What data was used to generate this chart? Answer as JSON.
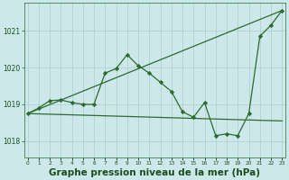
{
  "background_color": "#cce8ea",
  "grid_color": "#aacccc",
  "line_color": "#2d6a2d",
  "marker_color": "#2d6a2d",
  "xlabel": "Graphe pression niveau de la mer (hPa)",
  "xlabel_fontsize": 7.5,
  "xlabel_color": "#1a4d1a",
  "ylabel_ticks": [
    1018,
    1019,
    1020,
    1021
  ],
  "xtick_labels": [
    "0",
    "1",
    "2",
    "3",
    "4",
    "5",
    "6",
    "7",
    "8",
    "9",
    "10",
    "11",
    "12",
    "13",
    "14",
    "15",
    "16",
    "17",
    "18",
    "19",
    "20",
    "21",
    "22",
    "23"
  ],
  "ylim": [
    1017.55,
    1021.75
  ],
  "xlim": [
    -0.3,
    23.3
  ],
  "series1": [
    [
      0,
      1018.75
    ],
    [
      1,
      1018.9
    ],
    [
      2,
      1019.1
    ],
    [
      3,
      1019.12
    ],
    [
      4,
      1019.05
    ],
    [
      5,
      1019.0
    ],
    [
      6,
      1019.0
    ],
    [
      7,
      1019.85
    ],
    [
      8,
      1019.97
    ],
    [
      9,
      1020.35
    ],
    [
      10,
      1020.05
    ],
    [
      11,
      1019.85
    ],
    [
      12,
      1019.6
    ],
    [
      13,
      1019.35
    ],
    [
      14,
      1018.8
    ],
    [
      15,
      1018.65
    ],
    [
      16,
      1019.05
    ],
    [
      17,
      1018.15
    ],
    [
      18,
      1018.2
    ],
    [
      19,
      1018.15
    ],
    [
      20,
      1018.75
    ],
    [
      21,
      1020.85
    ],
    [
      22,
      1021.15
    ],
    [
      23,
      1021.55
    ]
  ],
  "series2": [
    [
      0,
      1018.75
    ],
    [
      23,
      1021.55
    ]
  ],
  "series3": [
    [
      0,
      1018.75
    ],
    [
      23,
      1018.55
    ]
  ]
}
